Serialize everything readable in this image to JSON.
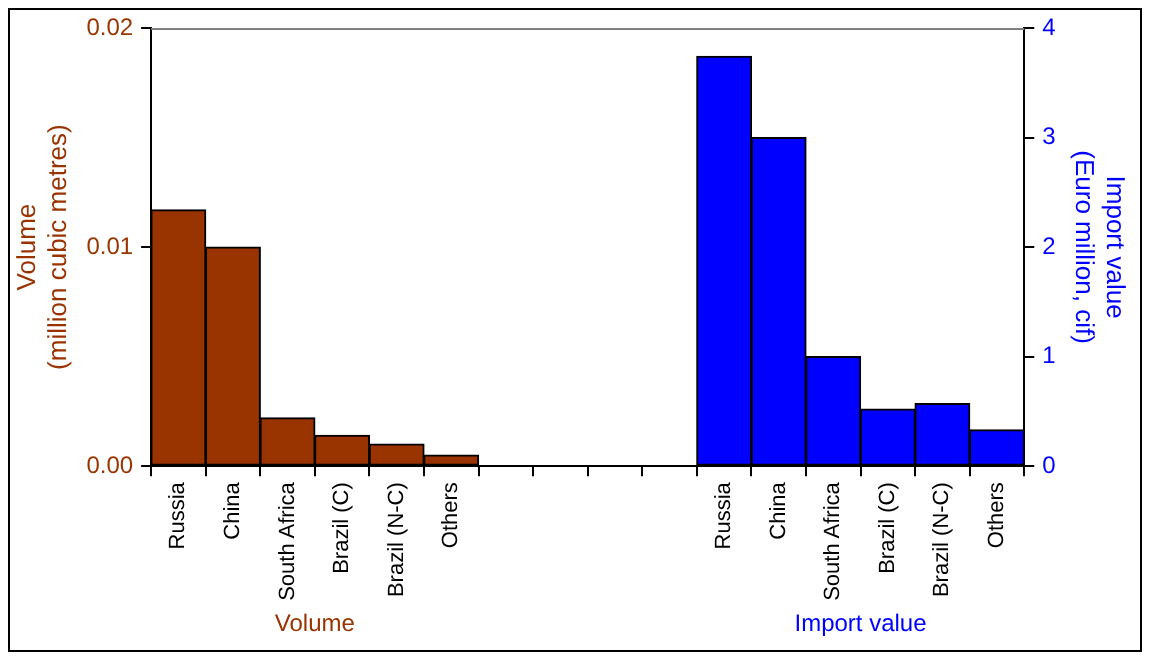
{
  "chart_data": {
    "type": "bar",
    "categories": [
      "Russia",
      "China",
      "South Africa",
      "Brazil (C)",
      "Brazil (N-C)",
      "Others",
      null,
      null,
      null,
      null,
      "Russia",
      "China",
      "South Africa",
      "Brazil (C)",
      "Brazil (N-C)",
      "Others"
    ],
    "series": [
      {
        "color": "#993300",
        "values": [
          0.0117,
          0.01,
          0.0022,
          0.0014,
          0.001,
          0.0005,
          null,
          null,
          null,
          null,
          null,
          null,
          null,
          null,
          null,
          null
        ]
      },
      {
        "color": "#0000ff",
        "axis": "y2",
        "values": [
          null,
          null,
          null,
          null,
          null,
          null,
          null,
          null,
          null,
          null,
          3.74,
          3.0,
          1.0,
          0.52,
          0.57,
          0.33
        ]
      }
    ],
    "ylabel": "Volume\n(million cubic metres)",
    "y2label": "Import value\n(Euro million, cif)",
    "ylim": [
      0,
      0.02
    ],
    "yticks": [
      {
        "value": 0,
        "label": "0.00"
      },
      {
        "value": 0.01,
        "label": "0.01"
      },
      {
        "value": 0.02,
        "label": "0.02"
      }
    ],
    "y2lim": [
      0,
      4
    ],
    "y2ticks": [
      0,
      1,
      2,
      3,
      4
    ],
    "annotations": [
      "Volume",
      "Import value"
    ],
    "grid": false,
    "legend": false
  }
}
